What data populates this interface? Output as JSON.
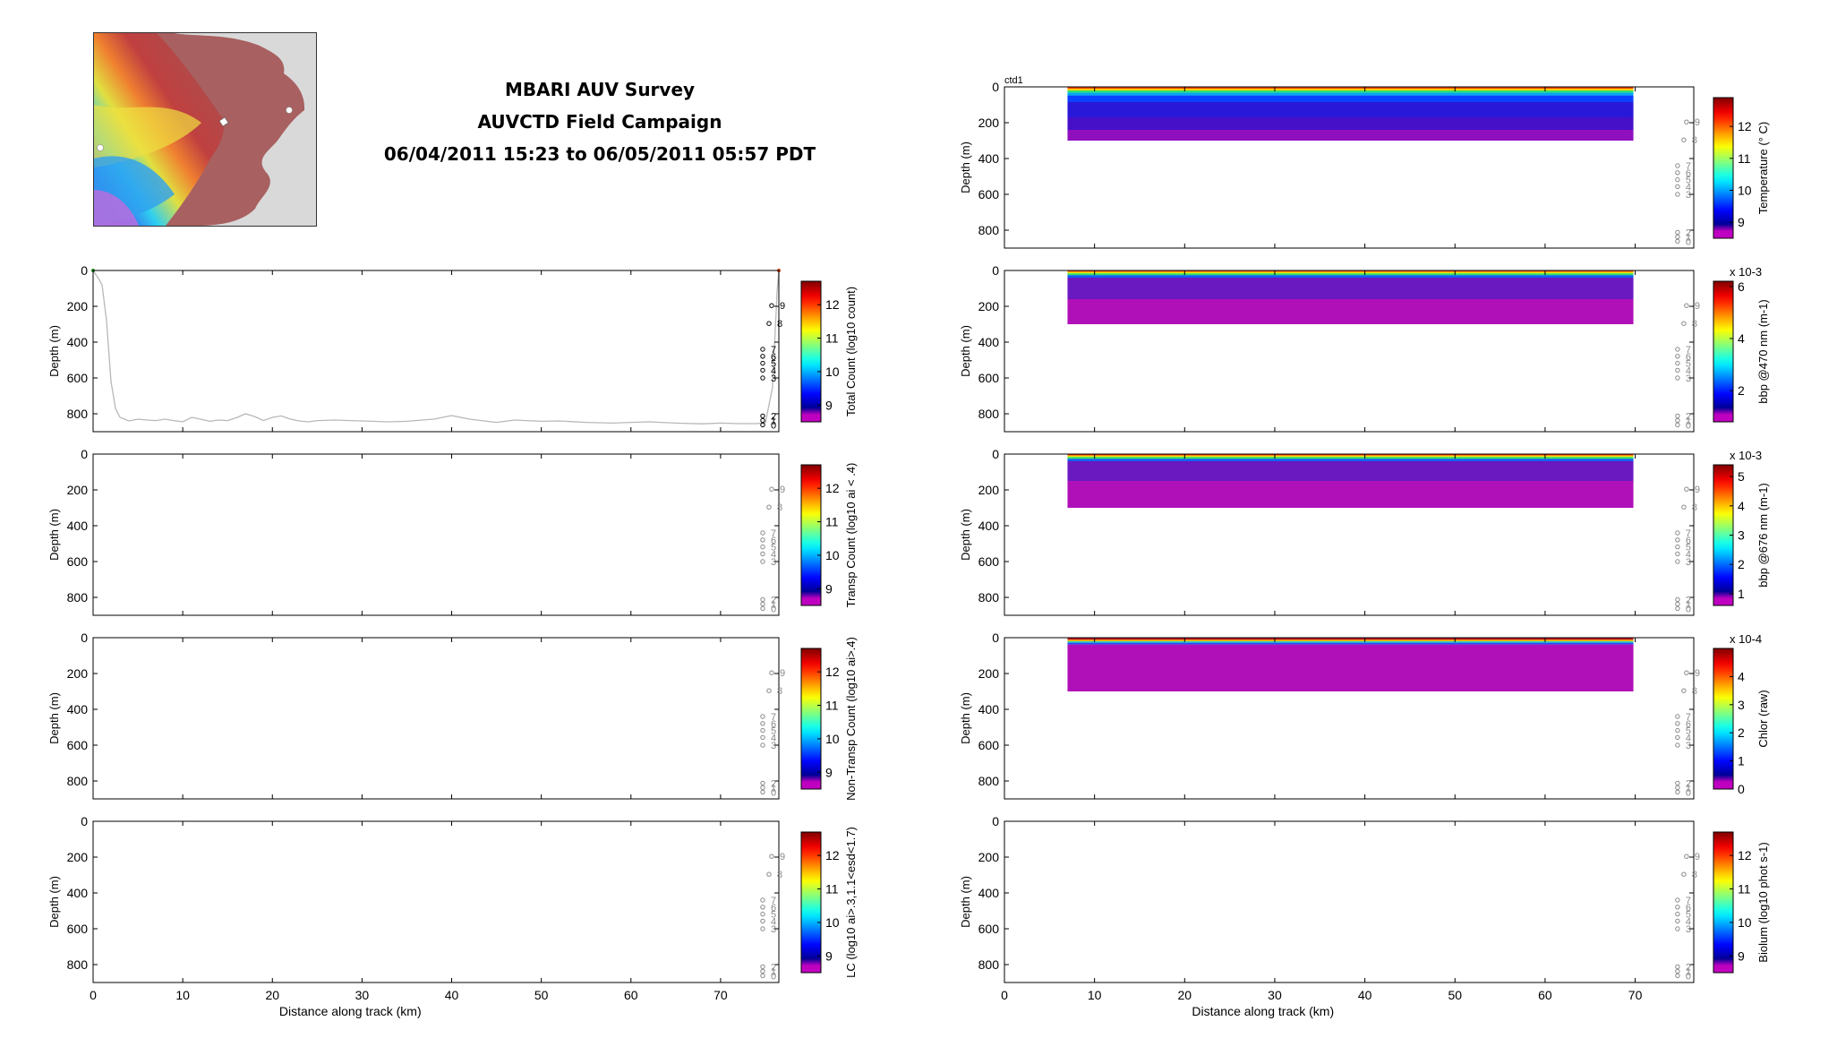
{
  "title": {
    "line1": "MBARI AUV Survey",
    "line2": "AUVCTD Field Campaign",
    "line3": "06/04/2011 15:23 to 06/05/2011 05:57 PDT"
  },
  "colors": {
    "magenta": "#c000c0",
    "purple": "#7a0fb0",
    "deep_blue": "#2a10d0",
    "track_line": "#b8b8b8"
  },
  "ctd_label": "ctd1",
  "chart_data": [
    {
      "id": "total-count",
      "type": "line",
      "position": "left",
      "title": "",
      "xlabel": "",
      "ylabel": "Depth (m)",
      "xlim": [
        0,
        76.5
      ],
      "ylim": [
        900,
        0
      ],
      "xticks": [
        0,
        10,
        20,
        30,
        40,
        50,
        60,
        70
      ],
      "yticks": [
        0,
        200,
        400,
        600,
        800
      ],
      "colorbar": {
        "label": "Total Count (log10 count)",
        "ticks": [
          "9",
          "10",
          "11",
          "12"
        ],
        "range": [
          8.5,
          12.7
        ]
      },
      "series": [
        {
          "x": [
            0,
            0.6,
            1,
            1.5,
            2,
            2.5,
            3,
            4,
            5,
            6,
            7,
            8,
            9,
            10,
            11,
            12,
            13,
            14,
            15,
            16,
            17,
            18,
            19,
            20,
            21,
            22,
            23,
            24,
            25,
            27,
            30,
            33,
            35,
            38,
            40,
            42,
            45,
            47,
            50,
            52,
            55,
            58,
            60,
            62,
            65,
            68,
            70,
            72,
            74,
            75,
            75.8,
            76.3,
            76.5
          ],
          "y": [
            0,
            45,
            80,
            280,
            620,
            770,
            820,
            840,
            830,
            835,
            838,
            830,
            838,
            845,
            820,
            830,
            842,
            835,
            838,
            822,
            800,
            815,
            838,
            820,
            812,
            830,
            840,
            845,
            838,
            835,
            840,
            845,
            842,
            830,
            810,
            830,
            848,
            835,
            842,
            840,
            848,
            852,
            848,
            845,
            852,
            856,
            852,
            855,
            855,
            850,
            650,
            120,
            0
          ]
        }
      ],
      "markers": {
        "x": 74.8,
        "depths": [
          0,
          1,
          2,
          3,
          4,
          5,
          6,
          7,
          8,
          9
        ],
        "y": [
          862,
          837,
          812,
          600,
          557,
          518,
          479,
          440,
          296,
          196
        ],
        "style": "black"
      }
    },
    {
      "id": "transp-count",
      "type": "line",
      "position": "left",
      "title": "",
      "xlabel": "",
      "ylabel": "Depth (m)",
      "xlim": [
        0,
        76.5
      ],
      "ylim": [
        900,
        0
      ],
      "xticks": [
        0,
        10,
        20,
        30,
        40,
        50,
        60,
        70
      ],
      "yticks": [
        0,
        200,
        400,
        600,
        800
      ],
      "colorbar": {
        "label": "Transp Count (log10 ai < .4)",
        "ticks": [
          "9",
          "10",
          "11",
          "12"
        ],
        "range": [
          8.5,
          12.7
        ]
      },
      "series": [],
      "markers": {
        "x": 74.8,
        "depths": [
          0,
          1,
          2,
          3,
          4,
          5,
          6,
          7,
          8,
          9
        ],
        "y": [
          862,
          837,
          812,
          600,
          557,
          518,
          479,
          440,
          296,
          196
        ],
        "style": "grey"
      }
    },
    {
      "id": "non-transp-count",
      "type": "line",
      "position": "left",
      "title": "",
      "xlabel": "",
      "ylabel": "Depth (m)",
      "xlim": [
        0,
        76.5
      ],
      "ylim": [
        900,
        0
      ],
      "xticks": [
        0,
        10,
        20,
        30,
        40,
        50,
        60,
        70
      ],
      "yticks": [
        0,
        200,
        400,
        600,
        800
      ],
      "colorbar": {
        "label": "Non-Transp Count (log10 ai>.4)",
        "ticks": [
          "9",
          "10",
          "11",
          "12"
        ],
        "range": [
          8.5,
          12.7
        ]
      },
      "series": [],
      "markers": {
        "x": 74.8,
        "depths": [
          0,
          1,
          2,
          3,
          4,
          5,
          6,
          7,
          8,
          9
        ],
        "y": [
          862,
          837,
          812,
          600,
          557,
          518,
          479,
          440,
          296,
          196
        ],
        "style": "grey"
      }
    },
    {
      "id": "lc-count",
      "type": "line",
      "position": "left",
      "title": "",
      "xlabel": "Distance along track (km)",
      "ylabel": "Depth (m)",
      "xlim": [
        0,
        76.5
      ],
      "ylim": [
        900,
        0
      ],
      "xticks": [
        0,
        10,
        20,
        30,
        40,
        50,
        60,
        70
      ],
      "yticks": [
        0,
        200,
        400,
        600,
        800
      ],
      "colorbar": {
        "label": "LC (log10 ai>.3,1.1<esd<1.7)",
        "ticks": [
          "9",
          "10",
          "11",
          "12"
        ],
        "range": [
          8.5,
          12.7
        ]
      },
      "series": [],
      "markers": {
        "x": 74.8,
        "depths": [
          0,
          1,
          2,
          3,
          4,
          5,
          6,
          7,
          8,
          9
        ],
        "y": [
          862,
          837,
          812,
          600,
          557,
          518,
          479,
          440,
          296,
          196
        ],
        "style": "grey"
      }
    },
    {
      "id": "temperature",
      "type": "heatmap",
      "position": "right",
      "title": "",
      "xlabel": "",
      "ylabel": "Depth (m)",
      "xlim": [
        0,
        76.5
      ],
      "ylim": [
        900,
        0
      ],
      "xticks": [
        0,
        10,
        20,
        30,
        40,
        50,
        60,
        70
      ],
      "yticks": [
        0,
        200,
        400,
        600,
        800
      ],
      "data_extent": {
        "x": [
          7,
          69.8
        ],
        "depth": [
          0,
          300
        ]
      },
      "colorbar": {
        "label": "Temperature (° C)",
        "ticks": [
          "9",
          "10",
          "11",
          "12"
        ],
        "range": [
          8.5,
          12.9
        ],
        "exponent": ""
      },
      "layers": [
        {
          "top": 0,
          "bottom": 10,
          "color": "#ff4000"
        },
        {
          "top": 10,
          "bottom": 20,
          "color": "#ffd000"
        },
        {
          "top": 20,
          "bottom": 32,
          "color": "#30e070"
        },
        {
          "top": 32,
          "bottom": 48,
          "color": "#00a8f0"
        },
        {
          "top": 48,
          "bottom": 85,
          "color": "#0a40ff"
        },
        {
          "top": 85,
          "bottom": 170,
          "color": "#2a18d8"
        },
        {
          "top": 170,
          "bottom": 240,
          "color": "#4510c8"
        },
        {
          "top": 240,
          "bottom": 300,
          "color": "#9010c0"
        }
      ],
      "markers": {
        "x": 74.8,
        "depths": [
          0,
          1,
          2,
          3,
          4,
          5,
          6,
          7,
          8,
          9
        ],
        "y": [
          862,
          837,
          812,
          600,
          557,
          518,
          479,
          440,
          296,
          196
        ],
        "style": "grey"
      }
    },
    {
      "id": "bbp470",
      "type": "heatmap",
      "position": "right",
      "title": "",
      "xlabel": "",
      "ylabel": "Depth (m)",
      "xlim": [
        0,
        76.5
      ],
      "ylim": [
        900,
        0
      ],
      "xticks": [
        0,
        10,
        20,
        30,
        40,
        50,
        60,
        70
      ],
      "yticks": [
        0,
        200,
        400,
        600,
        800
      ],
      "data_extent": {
        "x": [
          7,
          69.8
        ],
        "depth": [
          0,
          300
        ]
      },
      "colorbar": {
        "label": "bbp @470 nm (m-1)",
        "ticks": [
          "2",
          "4",
          "6"
        ],
        "range": [
          0.8,
          6.2
        ],
        "exponent": "x 10-3"
      },
      "layers": [
        {
          "top": 0,
          "bottom": 8,
          "color": "#ff5000"
        },
        {
          "top": 8,
          "bottom": 16,
          "color": "#f0e000"
        },
        {
          "top": 16,
          "bottom": 26,
          "color": "#30e060"
        },
        {
          "top": 26,
          "bottom": 40,
          "color": "#1060f0"
        },
        {
          "top": 40,
          "bottom": 160,
          "color": "#6a18c0"
        },
        {
          "top": 160,
          "bottom": 300,
          "color": "#b010b8"
        }
      ],
      "markers": {
        "x": 74.8,
        "depths": [
          0,
          1,
          2,
          3,
          4,
          5,
          6,
          7,
          8,
          9
        ],
        "y": [
          862,
          837,
          812,
          600,
          557,
          518,
          479,
          440,
          296,
          196
        ],
        "style": "grey"
      }
    },
    {
      "id": "bbp676",
      "type": "heatmap",
      "position": "right",
      "title": "",
      "xlabel": "",
      "ylabel": "Depth (m)",
      "xlim": [
        0,
        76.5
      ],
      "ylim": [
        900,
        0
      ],
      "xticks": [
        0,
        10,
        20,
        30,
        40,
        50,
        60,
        70
      ],
      "yticks": [
        0,
        200,
        400,
        600,
        800
      ],
      "data_extent": {
        "x": [
          7,
          69.8
        ],
        "depth": [
          0,
          300
        ]
      },
      "colorbar": {
        "label": "bbp @676 nm (m-1)",
        "ticks": [
          "1",
          "2",
          "3",
          "4",
          "5"
        ],
        "range": [
          0.6,
          5.4
        ],
        "exponent": "x 10-3"
      },
      "layers": [
        {
          "top": 0,
          "bottom": 8,
          "color": "#ff3000"
        },
        {
          "top": 8,
          "bottom": 16,
          "color": "#f0e000"
        },
        {
          "top": 16,
          "bottom": 26,
          "color": "#30e060"
        },
        {
          "top": 26,
          "bottom": 40,
          "color": "#1060f0"
        },
        {
          "top": 40,
          "bottom": 150,
          "color": "#6a18c0"
        },
        {
          "top": 150,
          "bottom": 300,
          "color": "#b010b8"
        }
      ],
      "markers": {
        "x": 74.8,
        "depths": [
          0,
          1,
          2,
          3,
          4,
          5,
          6,
          7,
          8,
          9
        ],
        "y": [
          862,
          837,
          812,
          600,
          557,
          518,
          479,
          440,
          296,
          196
        ],
        "style": "grey"
      }
    },
    {
      "id": "chlor",
      "type": "heatmap",
      "position": "right",
      "title": "",
      "xlabel": "",
      "ylabel": "Depth (m)",
      "xlim": [
        0,
        76.5
      ],
      "ylim": [
        900,
        0
      ],
      "xticks": [
        0,
        10,
        20,
        30,
        40,
        50,
        60,
        70
      ],
      "yticks": [
        0,
        200,
        400,
        600,
        800
      ],
      "data_extent": {
        "x": [
          7,
          69.8
        ],
        "depth": [
          0,
          300
        ]
      },
      "colorbar": {
        "label": "Chlor (raw)",
        "ticks": [
          "0",
          "1",
          "2",
          "3",
          "4"
        ],
        "range": [
          0,
          5
        ],
        "exponent": "x 10-4"
      },
      "layers": [
        {
          "top": 0,
          "bottom": 12,
          "color": "#c01020"
        },
        {
          "top": 12,
          "bottom": 20,
          "color": "#f0c000"
        },
        {
          "top": 20,
          "bottom": 28,
          "color": "#30d0c0"
        },
        {
          "top": 28,
          "bottom": 38,
          "color": "#2050f0"
        },
        {
          "top": 38,
          "bottom": 300,
          "color": "#b010b8"
        }
      ],
      "markers": {
        "x": 74.8,
        "depths": [
          0,
          1,
          2,
          3,
          4,
          5,
          6,
          7,
          8,
          9
        ],
        "y": [
          862,
          837,
          812,
          600,
          557,
          518,
          479,
          440,
          296,
          196
        ],
        "style": "grey"
      }
    },
    {
      "id": "biolum",
      "type": "heatmap",
      "position": "right",
      "title": "",
      "xlabel": "Distance along track (km)",
      "ylabel": "Depth (m)",
      "xlim": [
        0,
        76.5
      ],
      "ylim": [
        900,
        0
      ],
      "xticks": [
        0,
        10,
        20,
        30,
        40,
        50,
        60,
        70
      ],
      "yticks": [
        0,
        200,
        400,
        600,
        800
      ],
      "data_extent": null,
      "colorbar": {
        "label": "Biolum (log10 phot s-1)",
        "ticks": [
          "9",
          "10",
          "11",
          "12"
        ],
        "range": [
          8.5,
          12.7
        ],
        "exponent": ""
      },
      "layers": [],
      "markers": {
        "x": 74.8,
        "depths": [
          0,
          1,
          2,
          3,
          4,
          5,
          6,
          7,
          8,
          9
        ],
        "y": [
          862,
          837,
          812,
          600,
          557,
          518,
          479,
          440,
          296,
          196
        ],
        "style": "grey"
      }
    }
  ]
}
